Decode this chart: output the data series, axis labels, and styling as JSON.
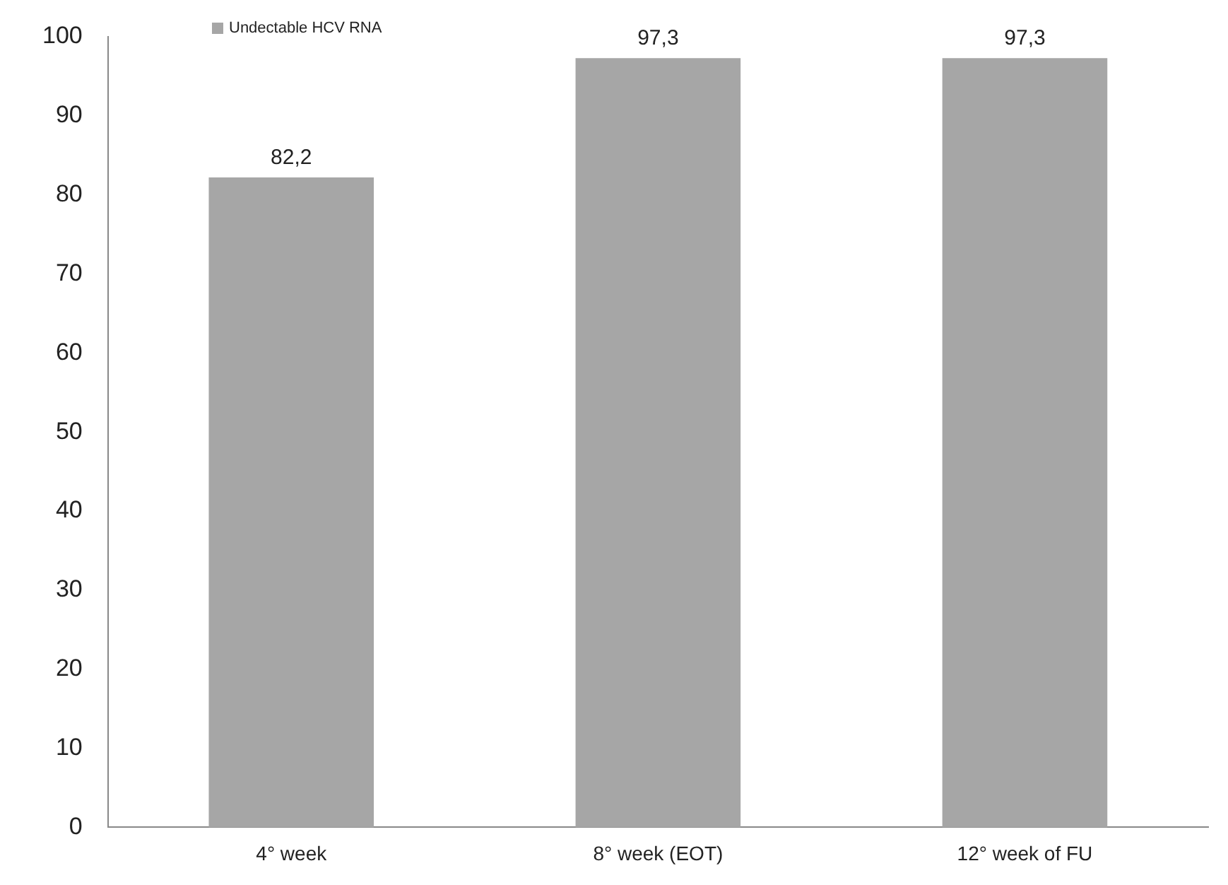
{
  "chart_data": {
    "type": "bar",
    "categories": [
      "4° week",
      "8° week (EOT)",
      "12° week of FU"
    ],
    "series": [
      {
        "name": "Undectable HCV RNA",
        "color": "#a6a6a6",
        "values": [
          82.2,
          97.3,
          97.3
        ],
        "value_labels": [
          "82,2",
          "97,3",
          "97,3"
        ]
      }
    ],
    "ylim": [
      0,
      100
    ],
    "yticks": [
      0,
      10,
      20,
      30,
      40,
      50,
      60,
      70,
      80,
      90,
      100
    ],
    "grid": false,
    "legend": "top left"
  }
}
